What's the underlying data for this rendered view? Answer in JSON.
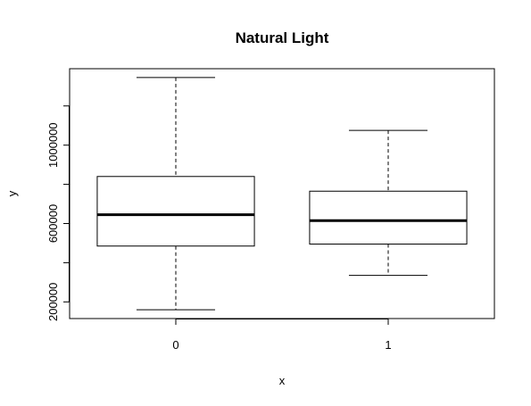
{
  "chart_data": {
    "type": "boxplot",
    "title": "Natural Light",
    "xlabel": "x",
    "ylabel": "y",
    "categories": [
      "0",
      "1"
    ],
    "boxes": [
      {
        "category": "0",
        "min": 160000,
        "q1": 485000,
        "median": 645000,
        "q3": 840000,
        "max": 1345000
      },
      {
        "category": "1",
        "min": 335000,
        "q1": 495000,
        "median": 615000,
        "q3": 765000,
        "max": 1075000
      }
    ],
    "ylim": [
      115000,
      1390000
    ],
    "yticks": [
      200000,
      600000,
      1000000
    ],
    "ytick_labels": [
      "200000",
      "600000",
      "1000000"
    ],
    "yticks_unlabeled": [
      400000,
      800000,
      1200000
    ],
    "grid": false,
    "legend": "none"
  }
}
